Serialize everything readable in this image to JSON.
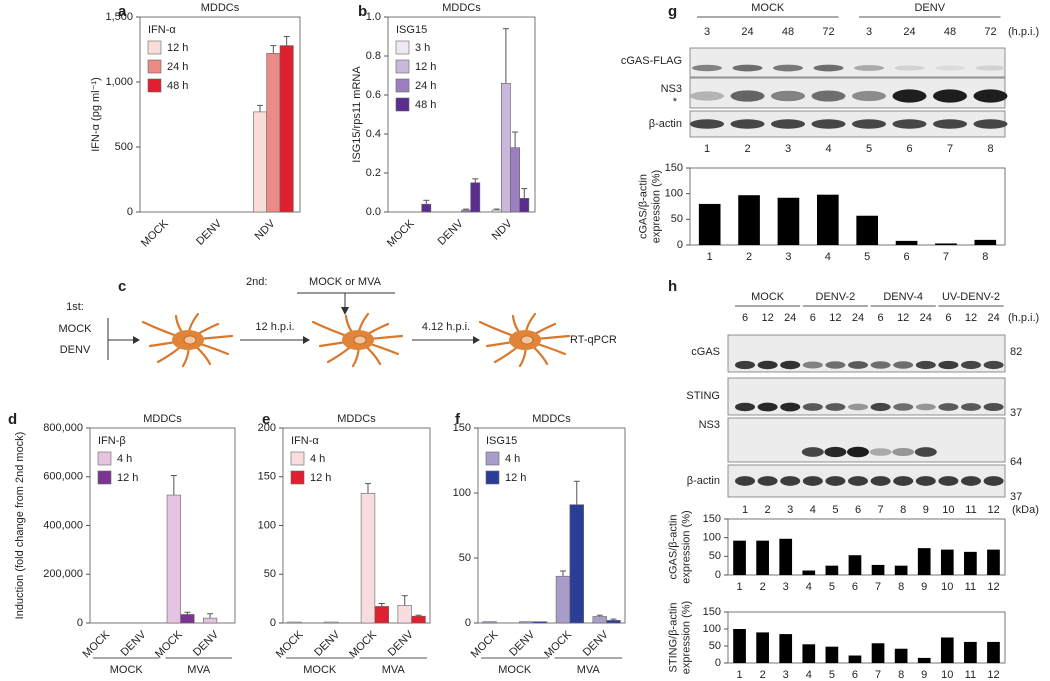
{
  "panel_labels": [
    "a",
    "b",
    "c",
    "d",
    "e",
    "f",
    "g",
    "h"
  ],
  "chart_data": [
    {
      "type": "bar",
      "title": "MDDCs",
      "ylabel": "IFN-α (pg ml⁻¹)",
      "legend_title": "IFN-α",
      "legend": "upper left",
      "categories": [
        "MOCK",
        "DENV",
        "NDV"
      ],
      "series": [
        {
          "name": "12 h",
          "color": "#f9ddd9",
          "values": [
            0,
            0,
            770
          ],
          "errors": [
            null,
            null,
            50
          ]
        },
        {
          "name": "24 h",
          "color": "#ec8a86",
          "values": [
            0,
            0,
            1220
          ],
          "errors": [
            null,
            null,
            60
          ]
        },
        {
          "name": "48 h",
          "color": "#e0202e",
          "values": [
            0,
            0,
            1280
          ],
          "errors": [
            null,
            null,
            70
          ]
        }
      ],
      "ylim": [
        0,
        1500
      ],
      "yticks": [
        0,
        500,
        {
          "value": 1000,
          "label": "1,000"
        },
        {
          "value": 1500,
          "label": "1,500"
        }
      ],
      "grid": false
    },
    {
      "type": "bar",
      "title": "MDDCs",
      "ylabel": "ISG15/rps11 mRNA",
      "legend_title": "ISG15",
      "legend": "upper left",
      "categories": [
        "MOCK",
        "DENV",
        "NDV"
      ],
      "series": [
        {
          "name": "3 h",
          "color": "#efe9f3",
          "values": [
            0,
            0,
            0.01
          ],
          "errors": [
            null,
            null,
            0.005
          ]
        },
        {
          "name": "12 h",
          "color": "#c9b8db",
          "values": [
            0,
            0,
            0.66
          ],
          "errors": [
            null,
            null,
            0.28
          ]
        },
        {
          "name": "24 h",
          "color": "#9b7fbf",
          "values": [
            0,
            0.01,
            0.33
          ],
          "errors": [
            null,
            0.005,
            0.08
          ]
        },
        {
          "name": "48 h",
          "color": "#5b2d8e",
          "values": [
            0.04,
            0.15,
            0.07
          ],
          "errors": [
            0.02,
            0.02,
            0.05
          ]
        }
      ],
      "ylim": [
        0,
        1
      ],
      "yticks": [
        {
          "value": 0,
          "label": "0.0"
        },
        0.2,
        0.4,
        0.6,
        0.8,
        {
          "value": 1,
          "label": "1.0"
        }
      ],
      "grid": false
    },
    {
      "type": "bar",
      "ylabel": [
        "cGAS/β-actin",
        "expression (%)"
      ],
      "color": "#000000",
      "categories": [
        "1",
        "2",
        "3",
        "4",
        "5",
        "6",
        "7",
        "8"
      ],
      "values": [
        80,
        97,
        92,
        98,
        57,
        8,
        3,
        10
      ],
      "ylim": [
        0,
        150
      ],
      "yticks": [
        0,
        50,
        100,
        150
      ],
      "grid": false
    },
    {
      "type": "bar",
      "title": "MDDCs",
      "ylabel": "Induction (fold change from 2nd mock)",
      "legend_title": "IFN-β",
      "legend": "upper left",
      "categories": [
        "MOCK",
        "DENV",
        "MOCK",
        "DENV"
      ],
      "groups": [
        "MOCK",
        "MVA"
      ],
      "series": [
        {
          "name": "4 h",
          "color": "#e6c3e0",
          "values": [
            0,
            0,
            525000,
            20000
          ],
          "errors": [
            null,
            null,
            80000,
            18000
          ]
        },
        {
          "name": "12 h",
          "color": "#7a3590",
          "values": [
            0,
            0,
            35000,
            0
          ],
          "errors": [
            null,
            null,
            9000,
            null
          ]
        }
      ],
      "ylim": [
        0,
        800000
      ],
      "yticks": [
        0,
        {
          "value": 200000,
          "label": "200,000"
        },
        {
          "value": 400000,
          "label": "400,000"
        },
        {
          "value": 600000,
          "label": "600,000"
        },
        {
          "value": 800000,
          "label": "800,000"
        }
      ],
      "grid": false
    },
    {
      "type": "bar",
      "title": "MDDCs",
      "legend_title": "IFN-α",
      "legend": "upper left",
      "categories": [
        "MOCK",
        "DENV",
        "MOCK",
        "DENV"
      ],
      "groups": [
        "MOCK",
        "MVA"
      ],
      "series": [
        {
          "name": "4 h",
          "color": "#f9dcdf",
          "values": [
            1,
            1,
            133,
            18
          ],
          "errors": [
            null,
            null,
            10,
            10
          ]
        },
        {
          "name": "12 h",
          "color": "#e0202e",
          "values": [
            0,
            0,
            17,
            7
          ],
          "errors": [
            null,
            null,
            3,
            1
          ]
        }
      ],
      "ylim": [
        0,
        200
      ],
      "yticks": [
        0,
        50,
        100,
        150,
        200
      ],
      "grid": false
    },
    {
      "type": "bar",
      "title": "MDDCs",
      "legend_title": "ISG15",
      "legend": "upper left",
      "categories": [
        "MOCK",
        "DENV",
        "MOCK",
        "DENV"
      ],
      "groups": [
        "MOCK",
        "MVA"
      ],
      "series": [
        {
          "name": "4 h",
          "color": "#a99cc9",
          "values": [
            1,
            1,
            36,
            5
          ],
          "errors": [
            null,
            null,
            4,
            1
          ]
        },
        {
          "name": "12 h",
          "color": "#2b3e97",
          "values": [
            0,
            1,
            91,
            2
          ],
          "errors": [
            null,
            null,
            18,
            1
          ]
        }
      ],
      "ylim": [
        0,
        150
      ],
      "yticks": [
        0,
        50,
        100,
        150
      ],
      "grid": false
    },
    {
      "type": "bar",
      "ylabel": [
        "cGAS/β-actin",
        "expression (%)"
      ],
      "color": "#000000",
      "categories": [
        "1",
        "2",
        "3",
        "4",
        "5",
        "6",
        "7",
        "8",
        "9",
        "10",
        "11",
        "12"
      ],
      "values": [
        92,
        92,
        97,
        12,
        25,
        53,
        27,
        25,
        72,
        68,
        62,
        68
      ],
      "ylim": [
        0,
        150
      ],
      "yticks": [
        0,
        50,
        100,
        150
      ],
      "grid": false
    },
    {
      "type": "bar",
      "ylabel": [
        "STING/β-actin",
        "expression (%)"
      ],
      "color": "#000000",
      "categories": [
        "1",
        "2",
        "3",
        "4",
        "5",
        "6",
        "7",
        "8",
        "9",
        "10",
        "11",
        "12"
      ],
      "values": [
        100,
        90,
        85,
        55,
        48,
        22,
        58,
        42,
        15,
        75,
        62,
        62
      ],
      "ylim": [
        0,
        150
      ],
      "yticks": [
        0,
        50,
        100,
        150
      ],
      "grid": false
    }
  ],
  "blot_g": {
    "groups": [
      "MOCK",
      "DENV"
    ],
    "times": [
      "3",
      "24",
      "48",
      "72",
      "3",
      "24",
      "48",
      "72"
    ],
    "unit": "(h.p.i.)",
    "rows": [
      "cGAS-FLAG",
      "NS3",
      "β-actin"
    ],
    "star": "*",
    "lanes": [
      "1",
      "2",
      "3",
      "4",
      "5",
      "6",
      "7",
      "8"
    ]
  },
  "blot_h": {
    "groups": [
      "MOCK",
      "DENV-2",
      "DENV-4",
      "UV-DENV-2"
    ],
    "times": [
      "6",
      "12",
      "24",
      "6",
      "12",
      "24",
      "6",
      "12",
      "24",
      "6",
      "12",
      "24"
    ],
    "unit": "(h.p.i.)",
    "rows": [
      "cGAS",
      "STING",
      "NS3",
      "β-actin"
    ],
    "markers": [
      "82",
      "37",
      "64",
      "37"
    ],
    "marker_unit": "(kDa)",
    "lanes": [
      "1",
      "2",
      "3",
      "4",
      "5",
      "6",
      "7",
      "8",
      "9",
      "10",
      "11",
      "12"
    ]
  },
  "diagram_c": {
    "first": "1st:",
    "first_options": [
      "MOCK",
      "DENV"
    ],
    "second": "2nd:",
    "second_option": "MOCK or MVA",
    "step1": "12 h.p.i.",
    "step2": "4.12 h.p.i.",
    "readout": "RT-qPCR"
  }
}
